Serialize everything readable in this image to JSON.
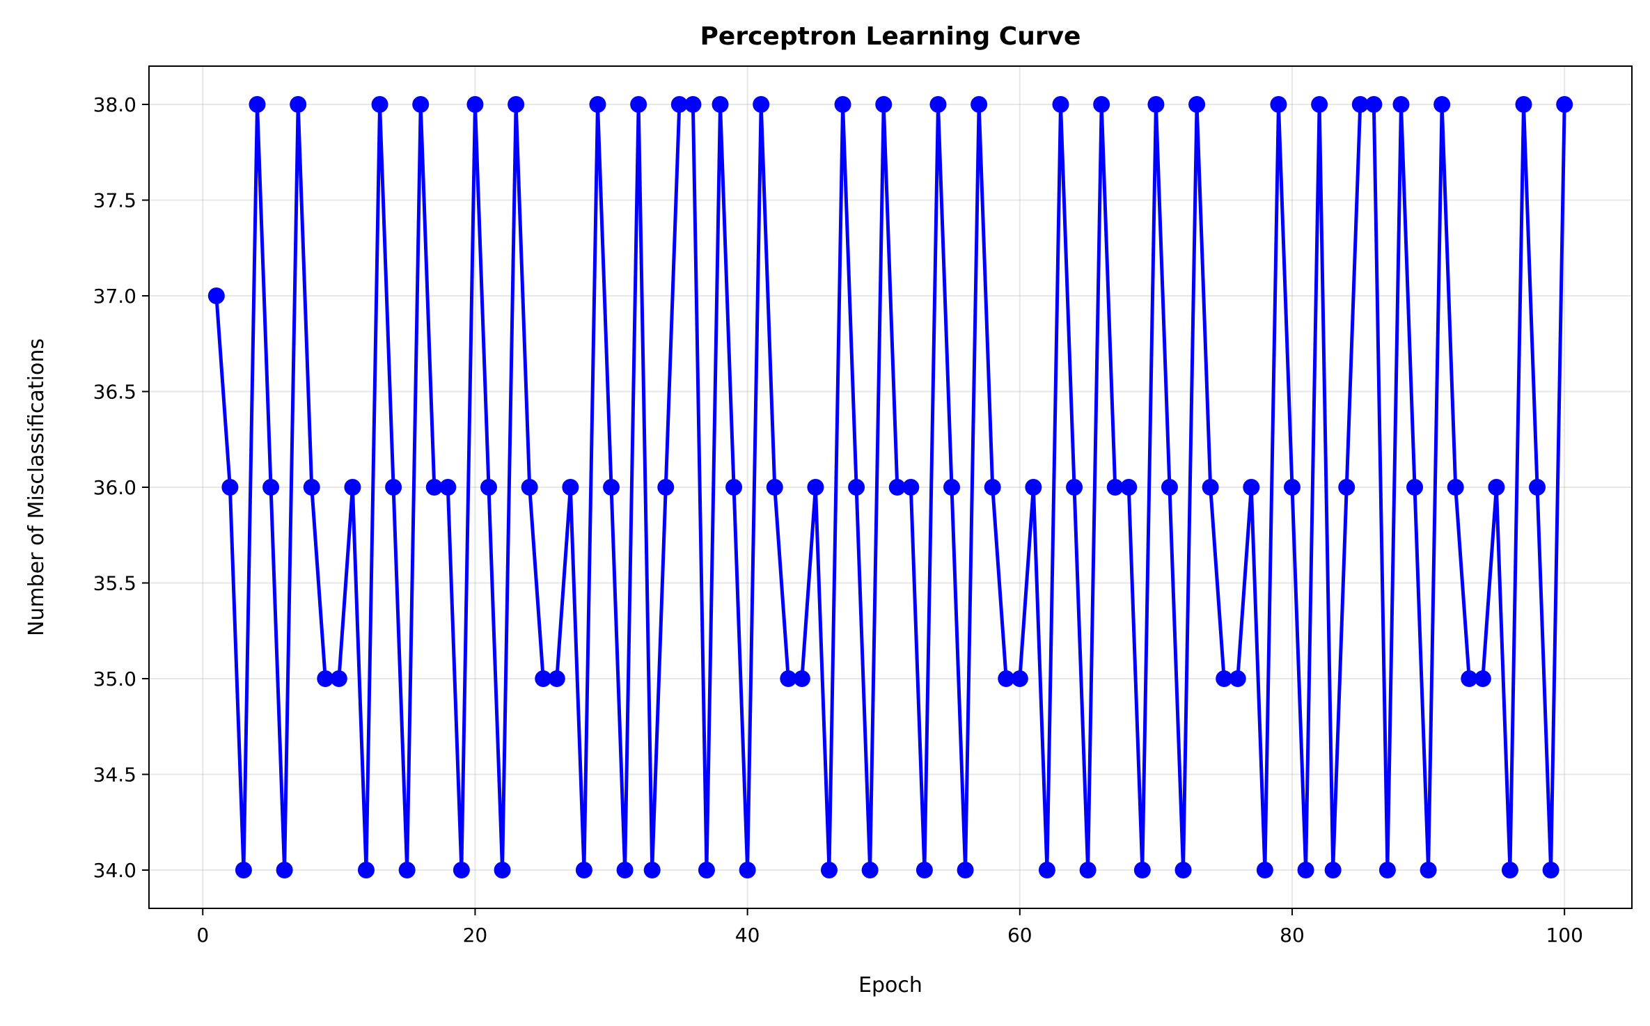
{
  "chart_data": {
    "type": "line",
    "title": "Perceptron Learning Curve",
    "xlabel": "Epoch",
    "ylabel": "Number of Misclassifications",
    "xlim": [
      -3.95,
      104.95
    ],
    "ylim": [
      33.8,
      38.2
    ],
    "xticks": [
      0,
      20,
      40,
      60,
      80,
      100
    ],
    "xtick_labels": [
      "0",
      "20",
      "40",
      "60",
      "80",
      "100"
    ],
    "yticks": [
      34.0,
      34.5,
      35.0,
      35.5,
      36.0,
      36.5,
      37.0,
      37.5,
      38.0
    ],
    "ytick_labels": [
      "34.0",
      "34.5",
      "35.0",
      "35.5",
      "36.0",
      "36.5",
      "37.0",
      "37.5",
      "38.0"
    ],
    "grid": true,
    "legend": null,
    "series": [
      {
        "color": "#0000ff",
        "marker": "circle",
        "x": [
          1,
          2,
          3,
          4,
          5,
          6,
          7,
          8,
          9,
          10,
          11,
          12,
          13,
          14,
          15,
          16,
          17,
          18,
          19,
          20,
          21,
          22,
          23,
          24,
          25,
          26,
          27,
          28,
          29,
          30,
          31,
          32,
          33,
          34,
          35,
          36,
          37,
          38,
          39,
          40,
          41,
          42,
          43,
          44,
          45,
          46,
          47,
          48,
          49,
          50,
          51,
          52,
          53,
          54,
          55,
          56,
          57,
          58,
          59,
          60,
          61,
          62,
          63,
          64,
          65,
          66,
          67,
          68,
          69,
          70,
          71,
          72,
          73,
          74,
          75,
          76,
          77,
          78,
          79,
          80,
          81,
          82,
          83,
          84,
          85,
          86,
          87,
          88,
          89,
          90,
          91,
          92,
          93,
          94,
          95,
          96,
          97,
          98,
          99,
          100
        ],
        "y": [
          37,
          36,
          34,
          38,
          36,
          34,
          38,
          36,
          35,
          35,
          36,
          34,
          38,
          36,
          34,
          38,
          36,
          36,
          34,
          38,
          36,
          34,
          38,
          36,
          35,
          35,
          36,
          34,
          38,
          36,
          34,
          38,
          34,
          36,
          38,
          38,
          34,
          38,
          36,
          34,
          38,
          36,
          35,
          35,
          36,
          34,
          38,
          36,
          34,
          38,
          36,
          36,
          34,
          38,
          36,
          34,
          38,
          36,
          35,
          35,
          36,
          34,
          38,
          36,
          34,
          38,
          36,
          36,
          34,
          38,
          36,
          34,
          38,
          36,
          35,
          35,
          36,
          34,
          38,
          36,
          34,
          38,
          34,
          36,
          38,
          38,
          34,
          38,
          36,
          34,
          38,
          36,
          35,
          35,
          36,
          34,
          38,
          36,
          34,
          38
        ]
      }
    ]
  }
}
